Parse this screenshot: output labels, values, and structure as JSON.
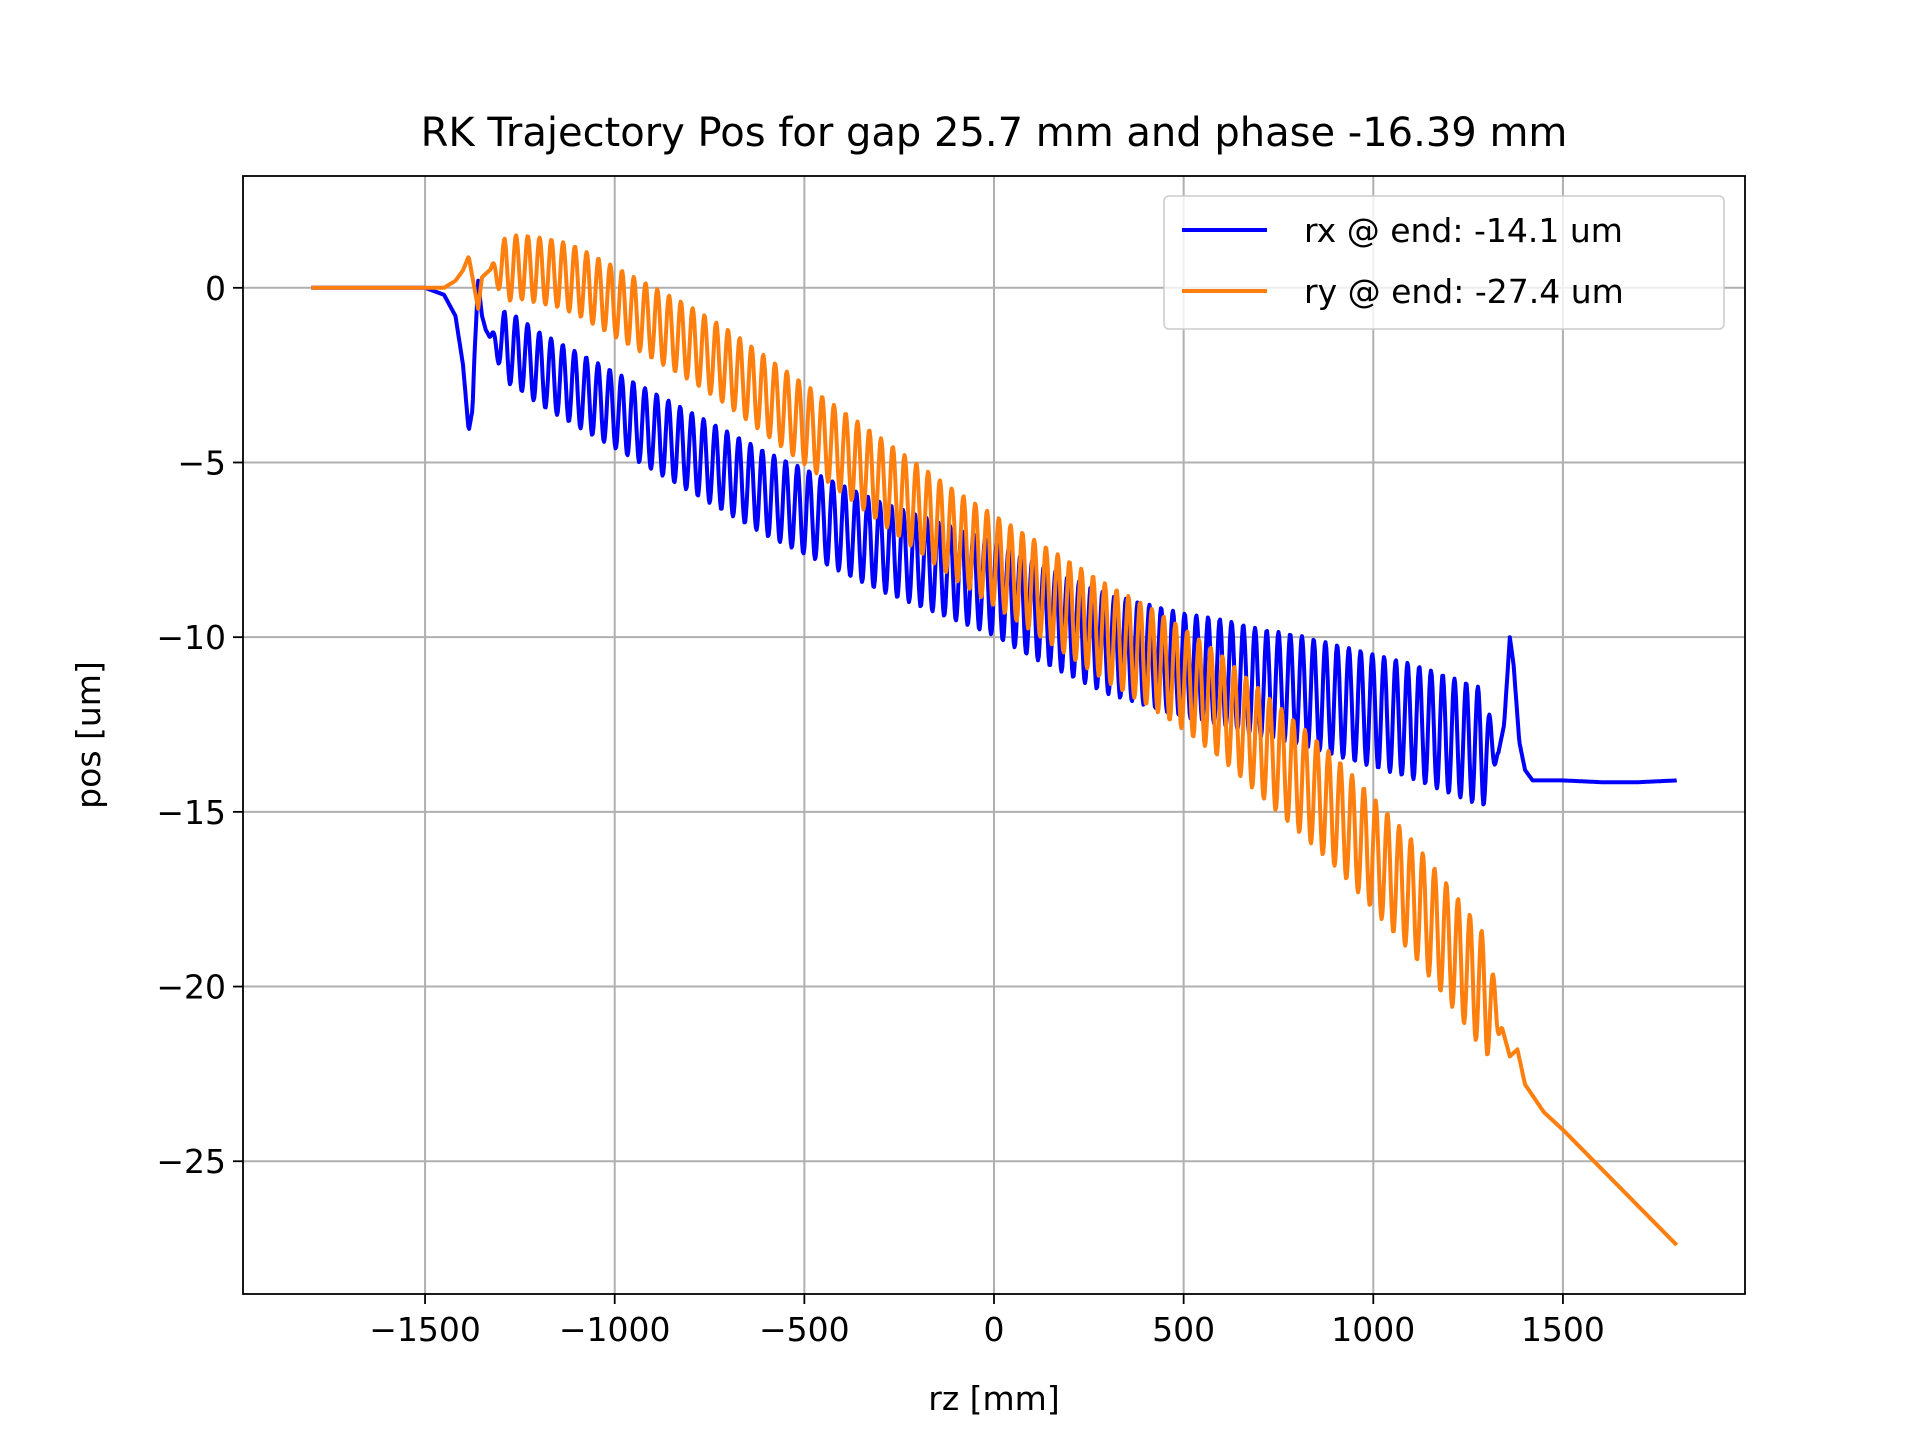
{
  "chart_data": {
    "type": "line",
    "title": "RK Trajectory Pos for gap 25.7 mm and phase -16.39 mm",
    "xlabel": "rz [mm]",
    "ylabel": "pos [um]",
    "xlim": [
      -1980,
      1980
    ],
    "ylim": [
      -28.8,
      3.2
    ],
    "x_ticks": [
      -1500,
      -1000,
      -500,
      0,
      500,
      1000,
      1500
    ],
    "x_tick_labels": [
      "−1500",
      "−1000",
      "−500",
      "0",
      "500",
      "1000",
      "1500"
    ],
    "y_ticks": [
      0,
      -5,
      -10,
      -15,
      -20,
      -25
    ],
    "y_tick_labels": [
      "0",
      "−5",
      "−10",
      "−15",
      "−20",
      "−25"
    ],
    "grid": true,
    "legend_position": "top-right",
    "series": [
      {
        "name": "rx @ end: -14.1 um",
        "color": "#0000ff",
        "x": [
          -1800,
          -1600,
          -1500,
          -1450,
          -1420,
          -1400,
          -1385,
          -1375,
          -1370,
          -1360,
          -1350,
          -1340,
          -1330,
          -1320,
          -1300,
          -1250,
          -1200,
          -1150,
          -1100,
          -1000,
          -900,
          -800,
          -700,
          -600,
          -500,
          -400,
          -300,
          -200,
          -100,
          0,
          100,
          200,
          300,
          400,
          500,
          600,
          700,
          800,
          900,
          1000,
          1100,
          1200,
          1300,
          1330,
          1345,
          1360,
          1370,
          1385,
          1400,
          1420,
          1440,
          1460,
          1500,
          1600,
          1700,
          1800
        ],
        "y": [
          0.0,
          0.0,
          0.0,
          -0.2,
          -0.8,
          -2.2,
          -4.1,
          -3.5,
          -2.0,
          0.2,
          -0.8,
          -1.2,
          -1.4,
          -1.5,
          -1.6,
          -1.9,
          -2.3,
          -2.6,
          -2.9,
          -3.5,
          -4.1,
          -4.7,
          -5.3,
          -5.9,
          -6.4,
          -6.9,
          -7.4,
          -7.8,
          -8.2,
          -8.6,
          -9.2,
          -9.7,
          -10.2,
          -10.5,
          -10.8,
          -11.0,
          -11.3,
          -11.5,
          -11.8,
          -12.1,
          -12.4,
          -12.8,
          -13.2,
          -13.3,
          -12.5,
          -10.0,
          -10.8,
          -13.0,
          -13.8,
          -14.1,
          -14.1,
          -14.1,
          -14.1,
          -14.15,
          -14.15,
          -14.1
        ],
        "oscillation": {
          "x_start": -1330,
          "x_end": 1330,
          "amplitude_start": 1.0,
          "amplitude_end": 1.7,
          "count": 86
        }
      },
      {
        "name": "ry @ end: -27.4 um",
        "color": "#ff7f0e",
        "x": [
          -1800,
          -1600,
          -1500,
          -1450,
          -1420,
          -1400,
          -1385,
          -1375,
          -1360,
          -1350,
          -1330,
          -1300,
          -1250,
          -1200,
          -1150,
          -1100,
          -1000,
          -900,
          -800,
          -700,
          -600,
          -500,
          -400,
          -300,
          -200,
          -100,
          0,
          100,
          200,
          300,
          400,
          500,
          600,
          700,
          800,
          900,
          1000,
          1100,
          1200,
          1300,
          1340,
          1360,
          1380,
          1400,
          1450,
          1500,
          1600,
          1700,
          1800
        ],
        "y": [
          0.0,
          0.0,
          0.0,
          0.0,
          0.2,
          0.5,
          0.9,
          0.3,
          -0.6,
          0.3,
          0.5,
          0.5,
          0.6,
          0.5,
          0.4,
          0.2,
          -0.4,
          -1.0,
          -1.6,
          -2.3,
          -3.1,
          -3.9,
          -4.7,
          -5.5,
          -6.3,
          -7.1,
          -7.8,
          -8.5,
          -9.2,
          -9.9,
          -10.5,
          -11.2,
          -12.0,
          -13.0,
          -14.0,
          -15.0,
          -16.2,
          -17.4,
          -18.8,
          -20.3,
          -21.2,
          -22.0,
          -21.8,
          -22.8,
          -23.6,
          -24.1,
          -25.2,
          -26.3,
          -27.4
        ],
        "oscillation": {
          "x_start": -1330,
          "x_end": 1340,
          "amplitude_start": 0.9,
          "amplitude_end": 1.7,
          "count": 86
        }
      }
    ]
  }
}
